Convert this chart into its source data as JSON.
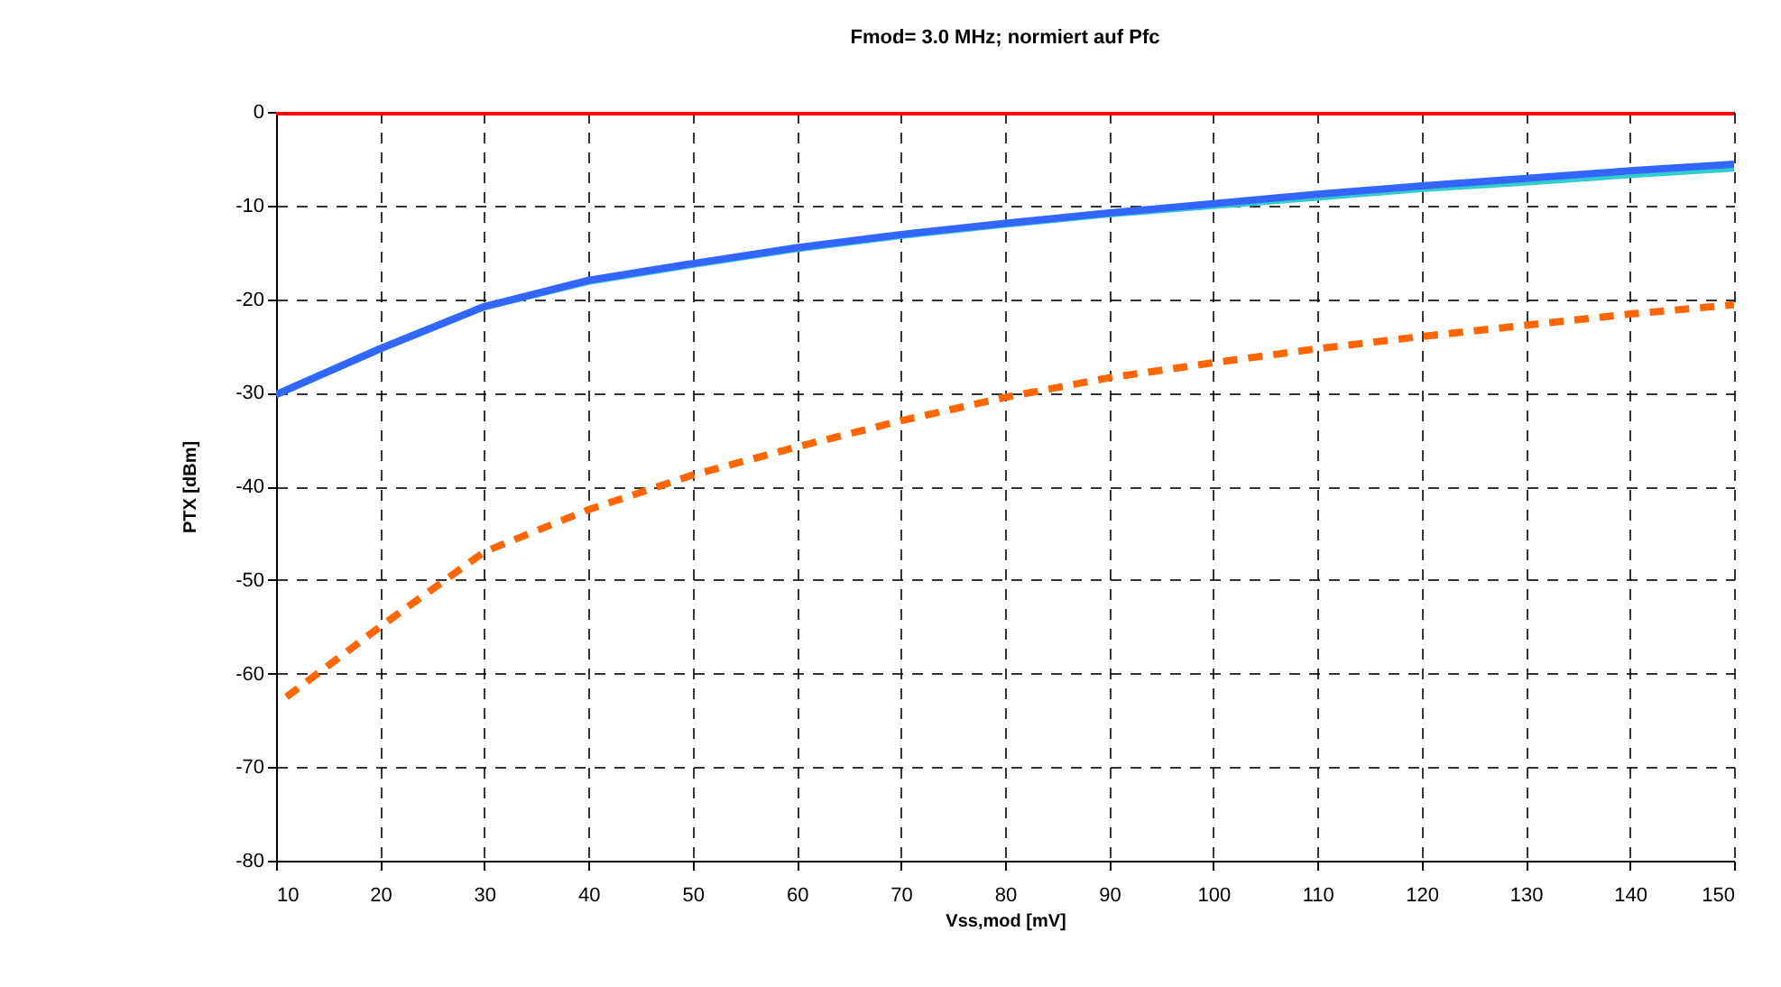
{
  "chart_data": {
    "type": "line",
    "title": "Fmod= 3.0 MHz; normiert auf Pfc",
    "xlabel": "Vss,mod [mV]",
    "ylabel": "PTX [dBm]",
    "xlim": [
      10,
      150
    ],
    "xticks": [
      10,
      20,
      30,
      40,
      50,
      60,
      70,
      80,
      90,
      100,
      110,
      120,
      130,
      140,
      150
    ],
    "ylim": [
      -80,
      0
    ],
    "yticks": [
      -80,
      -70,
      -60,
      -50,
      -40,
      -30,
      -20,
      -10,
      0
    ],
    "grid": true,
    "series": [
      {
        "color": "#ff0000",
        "x": [
          10,
          150
        ],
        "values": [
          0,
          0
        ]
      },
      {
        "color": "#33cccc",
        "x": [
          10,
          20,
          30,
          40,
          50,
          60,
          70,
          80,
          90,
          100,
          110,
          120,
          130,
          140,
          150
        ],
        "values": [
          -30.2,
          -25.3,
          -20.8,
          -18.1,
          -16.3,
          -14.6,
          -13.2,
          -12.0,
          -10.9,
          -10.0,
          -9.1,
          -8.2,
          -7.5,
          -6.7,
          -6.0
        ]
      },
      {
        "color": "#3366ff",
        "x": [
          10,
          20,
          30,
          40,
          50,
          60,
          70,
          80,
          90,
          100,
          110,
          120,
          130,
          140,
          150
        ],
        "values": [
          -30.2,
          -25.3,
          -20.8,
          -18.0,
          -16.2,
          -14.5,
          -13.1,
          -11.9,
          -10.8,
          -9.8,
          -8.8,
          -7.9,
          -7.1,
          -6.3,
          -5.6
        ]
      },
      {
        "color": "#ff6600",
        "line_style": "dashed",
        "x": [
          11,
          20,
          30,
          40,
          50,
          60,
          70,
          80,
          90,
          100,
          110,
          120,
          130,
          140,
          150
        ],
        "values": [
          -62.5,
          -55,
          -47,
          -42.5,
          -38.8,
          -35.8,
          -33,
          -30.5,
          -28.4,
          -26.8,
          -25.3,
          -24,
          -22.8,
          -21.6,
          -20.6
        ]
      }
    ]
  }
}
